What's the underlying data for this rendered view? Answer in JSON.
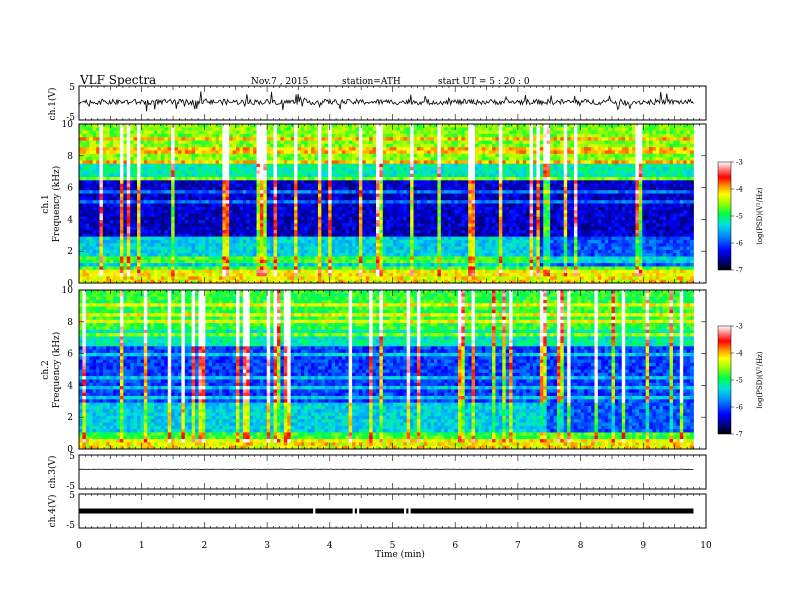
{
  "header": {
    "title": "VLF  Spectra",
    "date": "Nov.7  , 2015",
    "station": "station=ATH",
    "start": "start  UT  =   5  : 20 : 0"
  },
  "chart_data": {
    "type": "heatmap",
    "xlabel": "Time  (min)",
    "xlim": [
      0,
      10
    ],
    "x_ticks": [
      "0",
      "1",
      "2",
      "3",
      "4",
      "5",
      "6",
      "7",
      "8",
      "9",
      "10"
    ],
    "data_end_min": 9.8,
    "panels": [
      {
        "id": "ch1-waveform",
        "kind": "waveform",
        "ylabel": "ch.1(V)",
        "ylim": [
          -5,
          5
        ],
        "y_ticks": [
          "5",
          "-5"
        ],
        "baseline": 0.3,
        "noise": 0.8
      },
      {
        "id": "ch1-spectrogram",
        "kind": "spectrogram",
        "ylabel_top": "ch.1",
        "ylabel": "Frequency  (kHz)",
        "ylim": [
          0,
          10
        ],
        "y_ticks": [
          "0",
          "2",
          "4",
          "6",
          "8",
          "10"
        ],
        "colorbar": {
          "label": "log(PSD)(V²/Hz)",
          "range": [
            -7,
            -3
          ],
          "ticks": [
            "-3",
            "-4",
            "-5",
            "-6",
            "-7"
          ]
        },
        "band_change_min": 7.35
      },
      {
        "id": "ch2-spectrogram",
        "kind": "spectrogram",
        "ylabel_top": "ch.2",
        "ylabel": "Frequency  (kHz)",
        "ylim": [
          0,
          10
        ],
        "y_ticks": [
          "0",
          "2",
          "4",
          "6",
          "8",
          "10"
        ],
        "colorbar": {
          "label": "log(PSD)(V²/Hz)",
          "range": [
            -7,
            -3
          ],
          "ticks": [
            "-3",
            "-4",
            "-5",
            "-6",
            "-7"
          ]
        },
        "band_change_min": 7.35
      },
      {
        "id": "ch3-waveform",
        "kind": "waveform",
        "ylabel": "ch.3(V)",
        "ylim": [
          -5,
          5
        ],
        "y_ticks": [
          "5",
          "-5"
        ],
        "baseline": 0.8,
        "noise": 0.05
      },
      {
        "id": "ch4-waveform",
        "kind": "waveform",
        "ylabel": "ch.4(V)",
        "ylim": [
          -5,
          5
        ],
        "y_ticks": [
          "5",
          "-5"
        ],
        "baseline": 0.0,
        "noise": 0.05,
        "pulse_train": true,
        "gaps_min": [
          3.75,
          4.38,
          4.45,
          5.2,
          5.27
        ]
      }
    ]
  }
}
